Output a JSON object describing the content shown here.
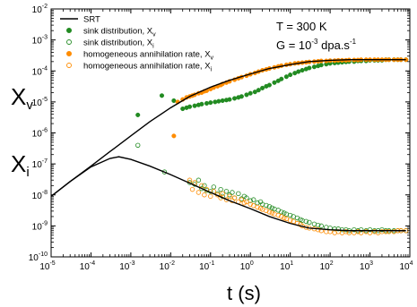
{
  "chart_data": {
    "type": "scatter",
    "title": "",
    "xlabel_main": "t (s)",
    "ylabel_v": "X",
    "ylabel_v_sub": "v",
    "ylabel_i": "X",
    "ylabel_i_sub": "i",
    "x_scale": "log",
    "y_scale": "log",
    "xlim": [
      1e-05,
      10000
    ],
    "ylim": [
      1e-10,
      0.01
    ],
    "grid": false,
    "legend_position": "top-left",
    "x_ticks": [
      {
        "value": 1e-05,
        "base": "10",
        "exp": "-5"
      },
      {
        "value": 0.0001,
        "base": "10",
        "exp": "-4"
      },
      {
        "value": 0.001,
        "base": "10",
        "exp": "-3"
      },
      {
        "value": 0.01,
        "base": "10",
        "exp": "-2"
      },
      {
        "value": 0.1,
        "base": "10",
        "exp": "-1"
      },
      {
        "value": 1,
        "base": "10",
        "exp": "0"
      },
      {
        "value": 10,
        "base": "10",
        "exp": "1"
      },
      {
        "value": 100,
        "base": "10",
        "exp": "2"
      },
      {
        "value": 1000,
        "base": "10",
        "exp": "3"
      },
      {
        "value": 10000,
        "base": "10",
        "exp": "4"
      }
    ],
    "y_ticks": [
      {
        "value": 1e-10,
        "base": "10",
        "exp": "-10"
      },
      {
        "value": 1e-09,
        "base": "10",
        "exp": "-9"
      },
      {
        "value": 1e-08,
        "base": "10",
        "exp": "-8"
      },
      {
        "value": 1e-07,
        "base": "10",
        "exp": "-7"
      },
      {
        "value": 1e-06,
        "base": "10",
        "exp": "-6"
      },
      {
        "value": 1e-05,
        "base": "10",
        "exp": "-5"
      },
      {
        "value": 0.0001,
        "base": "10",
        "exp": "-4"
      },
      {
        "value": 0.001,
        "base": "10",
        "exp": "-3"
      },
      {
        "value": 0.01,
        "base": "10",
        "exp": "-2"
      }
    ],
    "conditions": {
      "temperature": "T = 300 K",
      "dose_rate_prefix": "G = 10",
      "dose_rate_exp": "-3",
      "dose_rate_unit": " dpa.s",
      "dose_rate_unit_exp": "-1"
    },
    "legend": [
      {
        "label": "SRT",
        "sub": "",
        "marker": "line",
        "color": "#000000"
      },
      {
        "label": "sink distribution, X",
        "sub": "v",
        "marker": "filled",
        "color": "#228B22"
      },
      {
        "label": "sink distribution, X",
        "sub": "i",
        "marker": "open",
        "color": "#228B22"
      },
      {
        "label": "homogeneous annihilation rate, X",
        "sub": "v",
        "marker": "filled",
        "color": "#FF8C00"
      },
      {
        "label": "homogeneous annihilation rate, X",
        "sub": "i",
        "marker": "open",
        "color": "#FF8C00"
      }
    ],
    "series": [
      {
        "id": "srt_xv",
        "type": "line",
        "color": "#000000",
        "x": [
          1e-05,
          3e-05,
          0.0001,
          0.0003,
          0.001,
          0.003,
          0.01,
          0.03,
          0.1,
          0.3,
          1,
          3,
          10,
          30,
          100,
          300,
          1000,
          3000,
          8000
        ],
        "y": [
          9e-09,
          2.7e-08,
          8.5e-08,
          2.5e-07,
          8e-07,
          2.3e-06,
          6.5e-06,
          1.5e-05,
          3e-05,
          5e-05,
          8e-05,
          0.00012,
          0.00016,
          0.0002,
          0.00022,
          0.00023,
          0.00023,
          0.00023,
          0.00023
        ]
      },
      {
        "id": "srt_xi",
        "type": "line",
        "color": "#000000",
        "x": [
          1e-05,
          3e-05,
          0.0001,
          0.0003,
          0.0005,
          0.001,
          0.003,
          0.01,
          0.03,
          0.1,
          0.3,
          1,
          3,
          10,
          30,
          100,
          300,
          1000,
          3000,
          8000
        ],
        "y": [
          9e-09,
          2.7e-08,
          8e-08,
          1.5e-07,
          1.7e-07,
          1.4e-07,
          8.5e-08,
          4.5e-08,
          2.4e-08,
          1.2e-08,
          6.5e-09,
          3.6e-09,
          2e-09,
          1.2e-09,
          8.5e-10,
          7.5e-10,
          7e-10,
          7e-10,
          7e-10,
          7e-10
        ]
      },
      {
        "id": "sink_xv",
        "marker": "filled",
        "color": "#228B22",
        "x": [
          0.0015,
          0.006,
          0.012,
          0.02,
          0.025,
          0.03,
          0.04,
          0.05,
          0.06,
          0.08,
          0.1,
          0.13,
          0.16,
          0.2,
          0.25,
          0.3,
          0.4,
          0.5,
          0.6,
          0.8,
          1,
          1.3,
          1.6,
          2,
          2.5,
          3,
          4,
          5,
          6,
          8,
          10,
          13,
          16,
          20,
          25,
          30,
          40,
          50,
          60,
          80,
          100,
          130,
          160,
          200,
          250,
          300,
          400,
          500,
          600,
          800,
          1000,
          1300,
          1600,
          2000,
          2500,
          3000,
          4000,
          5000,
          6000,
          8000
        ],
        "y": [
          3.8e-06,
          1.6e-05,
          1.1e-05,
          6e-06,
          6.5e-06,
          7e-06,
          7.5e-06,
          8e-06,
          8.5e-06,
          9e-06,
          9.5e-06,
          1e-05,
          1.05e-05,
          1.1e-05,
          1.15e-05,
          1.2e-05,
          1.3e-05,
          1.4e-05,
          1.5e-05,
          1.7e-05,
          1.9e-05,
          2.1e-05,
          2.4e-05,
          2.8e-05,
          3.2e-05,
          3.5e-05,
          4.2e-05,
          4.8e-05,
          5.5e-05,
          6.5e-05,
          7.5e-05,
          8.5e-05,
          9.5e-05,
          0.000105,
          0.000115,
          0.000125,
          0.000135,
          0.000145,
          0.000155,
          0.000165,
          0.000175,
          0.00018,
          0.000185,
          0.00019,
          0.000195,
          0.0002,
          0.0002,
          0.00021,
          0.00021,
          0.00021,
          0.00022,
          0.00022,
          0.00022,
          0.00022,
          0.00023,
          0.00023,
          0.00023,
          0.00023,
          0.00023,
          0.00023
        ]
      },
      {
        "id": "sink_xi",
        "marker": "open",
        "color": "#228B22",
        "x": [
          0.0015,
          0.007,
          0.03,
          0.04,
          0.05,
          0.06,
          0.07,
          0.08,
          0.1,
          0.12,
          0.15,
          0.18,
          0.2,
          0.25,
          0.3,
          0.35,
          0.4,
          0.5,
          0.6,
          0.7,
          0.8,
          1,
          1.2,
          1.5,
          1.8,
          2,
          2.5,
          3,
          3.5,
          4,
          5,
          6,
          7,
          8,
          10,
          12,
          15,
          18,
          20,
          25,
          30,
          40,
          50,
          60,
          80,
          100,
          130,
          160,
          200,
          250,
          300,
          400,
          500,
          600,
          800,
          1000,
          1300,
          1600,
          2000,
          2500,
          3000,
          4000,
          5000,
          6000,
          8000
        ],
        "y": [
          4e-07,
          5.5e-08,
          2.5e-08,
          2.2e-08,
          3e-08,
          1.6e-08,
          2e-08,
          1.4e-08,
          1.3e-08,
          1.8e-08,
          1.1e-08,
          1.5e-08,
          9e-09,
          1.3e-08,
          1e-08,
          1.2e-08,
          8e-09,
          1.1e-08,
          7.5e-09,
          9e-09,
          8e-09,
          6.5e-09,
          7e-09,
          5.5e-09,
          6e-09,
          5e-09,
          4.6e-09,
          4.2e-09,
          3.8e-09,
          3.5e-09,
          3.2e-09,
          2.8e-09,
          2.6e-09,
          2.4e-09,
          2.2e-09,
          2e-09,
          1.8e-09,
          1.6e-09,
          1.5e-09,
          1.4e-09,
          1.3e-09,
          1.15e-09,
          1.05e-09,
          1e-09,
          9e-10,
          8.5e-10,
          8e-10,
          8e-10,
          7.5e-10,
          7.5e-10,
          7e-10,
          7.5e-10,
          7e-10,
          7.5e-10,
          7e-10,
          7.5e-10,
          7e-10,
          7e-10,
          7.5e-10,
          7e-10,
          7e-10,
          7e-10,
          7e-10,
          7e-10,
          7e-10
        ]
      },
      {
        "id": "hom_xv",
        "marker": "filled",
        "color": "#FF8C00",
        "x": [
          0.012,
          0.015,
          0.02,
          0.025,
          0.03,
          0.035,
          0.04,
          0.05,
          0.06,
          0.07,
          0.08,
          0.1,
          0.12,
          0.15,
          0.18,
          0.2,
          0.25,
          0.3,
          0.4,
          0.5,
          0.6,
          0.8,
          1,
          1.3,
          1.6,
          2,
          2.5,
          3,
          4,
          5,
          6,
          8,
          10,
          13,
          16,
          20,
          25,
          30,
          40,
          50,
          60,
          80,
          100,
          130,
          160,
          200,
          250,
          300,
          400,
          500,
          600,
          800,
          1000,
          1300,
          1600,
          2000,
          2500,
          3000,
          4000,
          5000,
          6000,
          8000
        ],
        "y": [
          8e-07,
          1e-05,
          1.2e-05,
          1.4e-05,
          1.5e-05,
          1.6e-05,
          1.7e-05,
          1.9e-05,
          2e-05,
          2.2e-05,
          2.3e-05,
          2.6e-05,
          2.9e-05,
          3.2e-05,
          3.5e-05,
          3.8e-05,
          4.2e-05,
          4.6e-05,
          5.2e-05,
          5.8e-05,
          6.3e-05,
          7e-05,
          7.8e-05,
          8.6e-05,
          9.5e-05,
          0.000105,
          0.000112,
          0.00012,
          0.00013,
          0.00014,
          0.000148,
          0.000158,
          0.000165,
          0.000175,
          0.00018,
          0.000185,
          0.00019,
          0.000195,
          0.0002,
          0.000205,
          0.00021,
          0.00021,
          0.000215,
          0.000215,
          0.00022,
          0.00022,
          0.00022,
          0.000225,
          0.000225,
          0.000225,
          0.00023,
          0.00023,
          0.00023,
          0.00023,
          0.00023,
          0.00023,
          0.00023,
          0.00023,
          0.00023,
          0.00023,
          0.00023,
          0.00023
        ]
      },
      {
        "id": "hom_xi",
        "marker": "open",
        "color": "#FF8C00",
        "x": [
          0.03,
          0.035,
          0.04,
          0.05,
          0.06,
          0.07,
          0.08,
          0.1,
          0.12,
          0.15,
          0.18,
          0.2,
          0.25,
          0.3,
          0.35,
          0.4,
          0.5,
          0.6,
          0.7,
          0.8,
          1,
          1.2,
          1.5,
          1.8,
          2,
          2.5,
          3,
          3.5,
          4,
          5,
          6,
          7,
          8,
          10,
          12,
          15,
          18,
          20,
          25,
          30,
          40,
          50,
          60,
          80,
          100,
          130,
          160,
          200,
          250,
          300,
          400,
          500,
          600,
          800,
          1000,
          1300,
          1600,
          2000,
          2500,
          3000,
          4000,
          5000,
          6000,
          8000
        ],
        "y": [
          3e-08,
          1.5e-08,
          2.5e-08,
          1.2e-08,
          2e-08,
          1e-08,
          1.5e-08,
          9e-09,
          1.3e-08,
          1e-08,
          8e-09,
          1.1e-08,
          7e-09,
          9e-09,
          6.5e-09,
          8e-09,
          6e-09,
          7e-09,
          5.5e-09,
          6e-09,
          5e-09,
          4.5e-09,
          4e-09,
          3.7e-09,
          3.4e-09,
          3.1e-09,
          2.8e-09,
          2.6e-09,
          2.4e-09,
          2.2e-09,
          2e-09,
          1.8e-09,
          1.7e-09,
          1.5e-09,
          1.4e-09,
          1.2e-09,
          1.1e-09,
          1e-09,
          9e-10,
          8.5e-10,
          8e-10,
          7.5e-10,
          7e-10,
          6.5e-10,
          6.5e-10,
          6e-10,
          6.5e-10,
          6e-10,
          6.5e-10,
          6e-10,
          6e-10,
          6.5e-10,
          6e-10,
          6.5e-10,
          6e-10,
          6.5e-10,
          6e-10,
          6.5e-10,
          6.5e-10,
          6.5e-10,
          6.5e-10,
          7e-10,
          7e-10,
          7e-10
        ]
      }
    ]
  }
}
